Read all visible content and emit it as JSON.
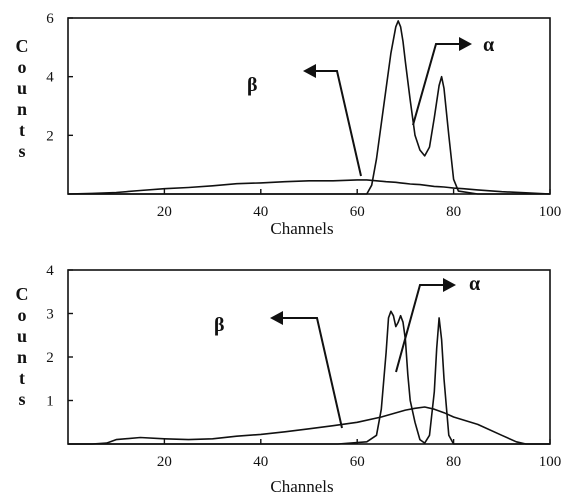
{
  "chart_data": [
    {
      "type": "line",
      "xlabel": "Channels",
      "ylabel": "Counts",
      "xlim": [
        0,
        100
      ],
      "ylim": [
        0,
        6
      ],
      "xticks": [
        20,
        40,
        60,
        80,
        100
      ],
      "yticks": [
        2,
        4,
        6
      ],
      "annotations": [
        {
          "text": "β",
          "arrow": "left"
        },
        {
          "text": "α",
          "arrow": "right"
        }
      ],
      "series": [
        {
          "x": [
            0,
            5,
            10,
            15,
            20,
            25,
            30,
            35,
            40,
            45,
            50,
            55,
            60,
            62,
            64,
            66,
            68,
            69,
            70,
            71,
            72,
            73,
            74,
            75,
            76,
            77,
            78,
            79,
            80,
            82,
            85,
            90,
            95,
            100
          ],
          "y": [
            0.0,
            0.02,
            0.05,
            0.12,
            0.18,
            0.22,
            0.28,
            0.35,
            0.38,
            0.42,
            0.45,
            0.45,
            0.48,
            0.48,
            0.45,
            0.42,
            0.4,
            0.38,
            0.36,
            0.34,
            0.33,
            0.32,
            0.3,
            0.28,
            0.26,
            0.25,
            0.24,
            0.22,
            0.2,
            0.18,
            0.14,
            0.08,
            0.04,
            0.0
          ]
        },
        {
          "x": [
            0,
            55,
            62,
            63,
            64,
            65,
            66,
            67,
            68,
            68.5,
            69,
            69.5,
            70,
            71,
            72,
            73,
            74,
            75,
            76,
            77,
            77.5,
            78,
            79,
            80,
            81,
            85,
            100
          ],
          "y": [
            0,
            0,
            0,
            0.3,
            1.2,
            2.4,
            3.6,
            4.8,
            5.7,
            5.9,
            5.7,
            5.2,
            4.5,
            3.2,
            2.0,
            1.5,
            1.3,
            1.6,
            2.6,
            3.7,
            4.0,
            3.6,
            2.0,
            0.5,
            0.1,
            0,
            0
          ]
        }
      ]
    },
    {
      "type": "line",
      "xlabel": "Channels",
      "ylabel": "Counts",
      "xlim": [
        0,
        100
      ],
      "ylim": [
        0,
        4
      ],
      "xticks": [
        20,
        40,
        60,
        80,
        100
      ],
      "yticks": [
        1,
        2,
        3,
        4
      ],
      "annotations": [
        {
          "text": "β",
          "arrow": "left"
        },
        {
          "text": "α",
          "arrow": "right"
        }
      ],
      "series": [
        {
          "x": [
            0,
            5,
            8,
            10,
            15,
            20,
            25,
            30,
            35,
            40,
            45,
            50,
            55,
            60,
            65,
            70,
            72,
            74,
            76,
            78,
            80,
            85,
            90,
            93,
            95,
            100
          ],
          "y": [
            0.0,
            0.0,
            0.02,
            0.1,
            0.15,
            0.12,
            0.1,
            0.12,
            0.18,
            0.22,
            0.28,
            0.35,
            0.42,
            0.5,
            0.62,
            0.78,
            0.82,
            0.85,
            0.8,
            0.72,
            0.62,
            0.45,
            0.2,
            0.05,
            0.0,
            0.0
          ]
        },
        {
          "x": [
            0,
            56,
            62,
            64,
            65,
            66,
            66.5,
            67,
            67.5,
            68,
            68.5,
            69,
            69.5,
            70,
            70.5,
            71,
            72,
            73,
            74,
            75,
            76,
            76.5,
            77,
            77.5,
            78,
            79,
            80,
            100
          ],
          "y": [
            0,
            0,
            0.05,
            0.2,
            0.8,
            2.1,
            2.9,
            3.05,
            2.95,
            2.7,
            2.8,
            2.95,
            2.8,
            2.4,
            1.6,
            1.0,
            0.5,
            0.1,
            0.02,
            0.2,
            1.2,
            2.2,
            2.9,
            2.4,
            1.5,
            0.2,
            0.0,
            0.0
          ]
        }
      ]
    }
  ]
}
